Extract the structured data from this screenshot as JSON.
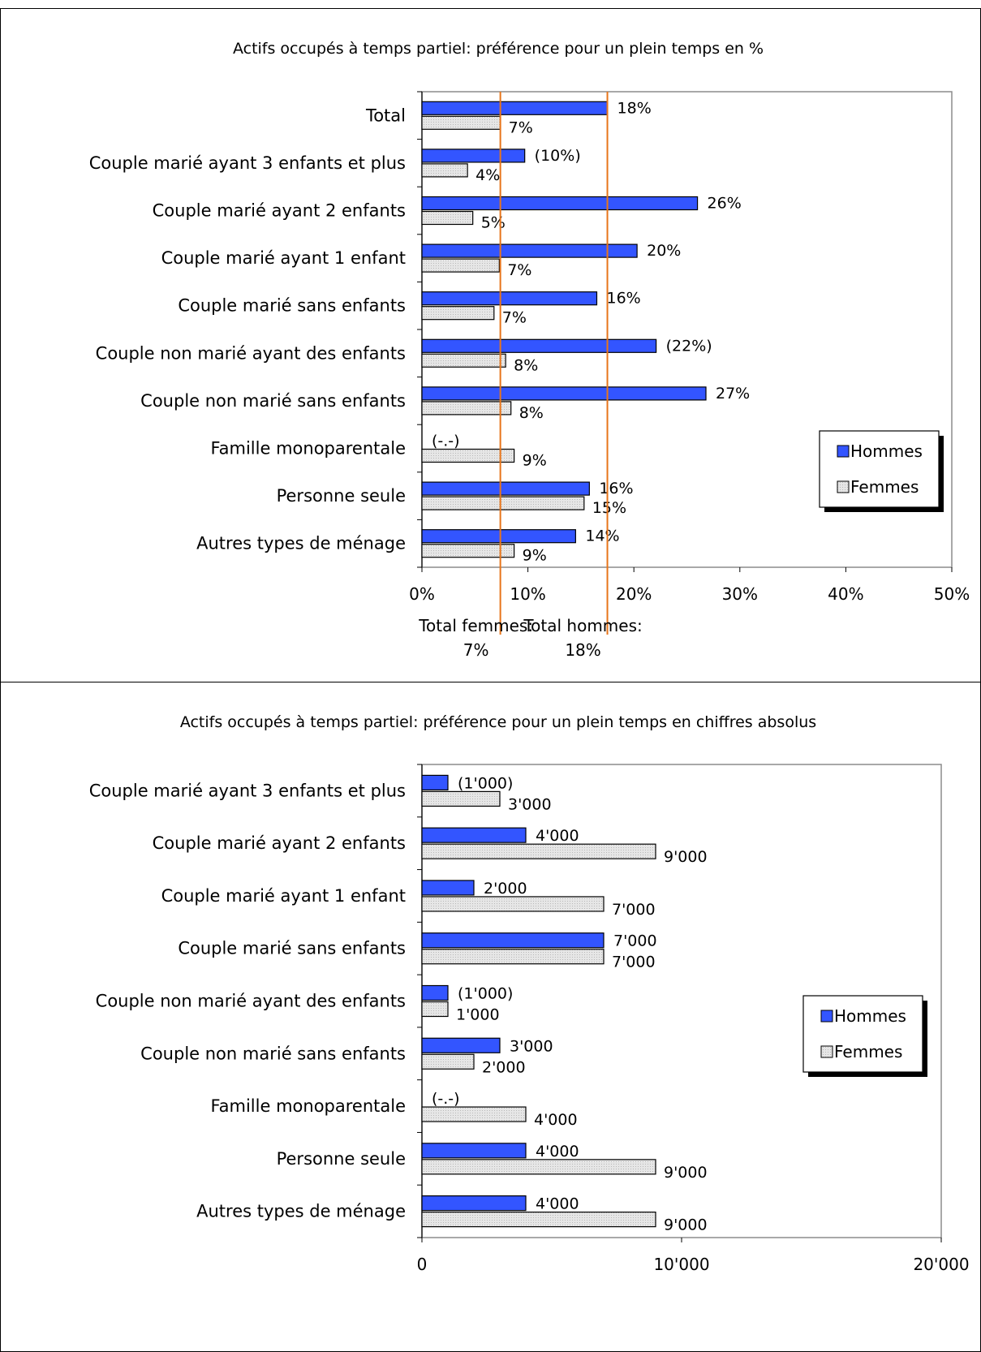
{
  "chart_data": [
    {
      "type": "bar",
      "orientation": "horizontal",
      "title": "Actifs occupés à temps partiel: préférence pour un plein temps en %",
      "xlim": [
        0,
        50
      ],
      "ticks": [
        "0%",
        "10%",
        "20%",
        "30%",
        "40%",
        "50%"
      ],
      "categories": [
        "Total",
        "Couple marié ayant 3 enfants et plus",
        "Couple marié ayant 2 enfants",
        "Couple marié ayant 1 enfant",
        "Couple marié sans enfants",
        "Couple non marié ayant des enfants",
        "Couple non marié sans enfants",
        "Famille monoparentale",
        "Personne seule",
        "Autres types de ménage"
      ],
      "series": [
        {
          "name": "Hommes",
          "color": "#3355ff",
          "values": [
            17.5,
            9.7,
            26.0,
            20.3,
            16.5,
            22.1,
            26.8,
            0,
            15.8,
            14.5
          ],
          "labels": [
            "18%",
            "(10%)",
            "26%",
            "20%",
            "16%",
            "(22%)",
            "27%",
            "(-.-)",
            "16%",
            "14%"
          ]
        },
        {
          "name": "Femmes",
          "color": "#dcdcdc",
          "values": [
            7.4,
            4.3,
            4.8,
            7.3,
            6.8,
            7.9,
            8.4,
            8.7,
            15.3,
            8.7
          ],
          "labels": [
            "7%",
            "4%",
            "5%",
            "7%",
            "7%",
            "8%",
            "8%",
            "9%",
            "15%",
            "9%"
          ]
        }
      ],
      "reference_lines": [
        {
          "value": 7.4,
          "color": "#e8751a",
          "label_line1": "Total femmes:",
          "label_line2": "7%"
        },
        {
          "value": 17.5,
          "color": "#e8751a",
          "label_line1": "Total hommes:",
          "label_line2": "18%"
        }
      ],
      "legend": "right"
    },
    {
      "type": "bar",
      "orientation": "horizontal",
      "title": "Actifs occupés à temps partiel: préférence pour un plein temps en chiffres absolus",
      "xlim": [
        0,
        20000
      ],
      "ticks": [
        "0",
        "10'000",
        "20'000"
      ],
      "categories": [
        "Couple marié ayant 3 enfants et plus",
        "Couple marié ayant 2 enfants",
        "Couple marié ayant 1 enfant",
        "Couple marié sans enfants",
        "Couple non marié ayant des enfants",
        "Couple non marié sans enfants",
        "Famille monoparentale",
        "Personne seule",
        "Autres types de ménage"
      ],
      "series": [
        {
          "name": "Hommes",
          "color": "#3355ff",
          "values": [
            1000,
            4000,
            2000,
            7000,
            1000,
            3000,
            0,
            4000,
            4000
          ],
          "labels": [
            "(1'000)",
            "4'000",
            "2'000",
            "7'000",
            "(1'000)",
            "3'000",
            "(-.-)",
            "4'000",
            "4'000"
          ]
        },
        {
          "name": "Femmes",
          "color": "#dcdcdc",
          "values": [
            3000,
            9000,
            7000,
            7000,
            1000,
            2000,
            4000,
            9000,
            9000
          ],
          "labels": [
            "3'000",
            "9'000",
            "7'000",
            "7'000",
            "1'000",
            "2'000",
            "4'000",
            "9'000",
            "9'000"
          ]
        }
      ],
      "legend": "right"
    }
  ]
}
